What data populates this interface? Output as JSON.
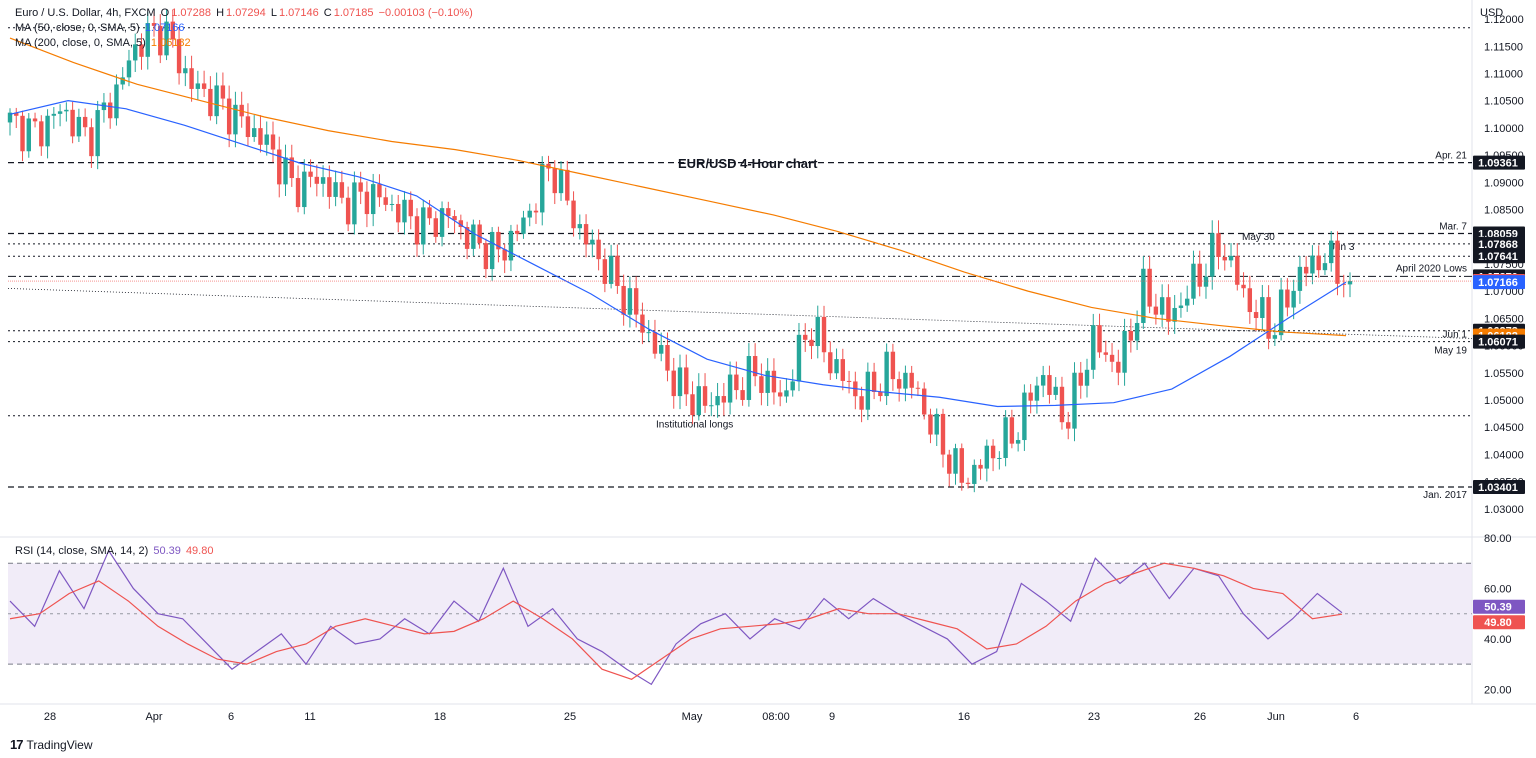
{
  "header": {
    "symbol": "Euro / U.S. Dollar, 4h, FXCM",
    "open_label": "O",
    "open": "1.07288",
    "high_label": "H",
    "high": "1.07294",
    "low_label": "L",
    "low": "1.07146",
    "close_label": "C",
    "close": "1.07185",
    "change": "−0.00103 (−0.10%)",
    "ma50_label": "MA (50, close, 0, SMA, 5)",
    "ma50_value": "1.07166",
    "ma200_label": "MA (200, close, 0, SMA, 5)",
    "ma200_value": "1.06182",
    "rsi_label": "RSI (14, close, SMA, 14, 2)",
    "rsi_value": "50.39",
    "rsi_ma_value": "49.80"
  },
  "branding": {
    "logo_text": "TradingView",
    "logo_mark": "17"
  },
  "colors": {
    "up": "#26a69a",
    "down": "#ef5350",
    "ma50": "#2962ff",
    "ma200": "#f57c00",
    "rsi": "#7e57c2",
    "rsi_ma": "#ef5350",
    "rsi_band": "#ede7f6",
    "dark_label": "#131722"
  },
  "chart_data": [
    {
      "type": "candlestick",
      "title": "EUR/USD 4-Hour chart",
      "currency_label": "USD",
      "ylim": [
        1.025,
        1.1235
      ],
      "y_ticks": [
        "1.12000",
        "1.11500",
        "1.11000",
        "1.10500",
        "1.10000",
        "1.09500",
        "1.09000",
        "1.08500",
        "1.08000",
        "1.07500",
        "1.07000",
        "1.06500",
        "1.06000",
        "1.05500",
        "1.05000",
        "1.04500",
        "1.04000",
        "1.03500",
        "1.03000"
      ],
      "x_ticks": [
        "28",
        "Apr",
        "6",
        "11",
        "18",
        "25",
        "May",
        "08:00",
        "9",
        "16",
        "23",
        "26",
        "Jun",
        "6"
      ],
      "price_labels": [
        {
          "text": "1.09361",
          "value": 1.09361,
          "style": "dark"
        },
        {
          "text": "1.08059",
          "value": 1.08059,
          "style": "dark"
        },
        {
          "text": "1.07868",
          "value": 1.07868,
          "style": "dark"
        },
        {
          "text": "1.07641",
          "value": 1.07641,
          "style": "dark"
        },
        {
          "text": "1.07270",
          "value": 1.0727,
          "style": "dark"
        },
        {
          "text": "1.07185",
          "value": 1.07185,
          "style": "red"
        },
        {
          "text": "1.07166",
          "value": 1.07166,
          "style": "blue"
        },
        {
          "text": "1.06273",
          "value": 1.06273,
          "style": "dark"
        },
        {
          "text": "1.06182",
          "value": 1.06182,
          "style": "orange"
        },
        {
          "text": "1.06071",
          "value": 1.06071,
          "style": "dark"
        },
        {
          "text": "1.03401",
          "value": 1.03401,
          "style": "dark"
        }
      ],
      "levels": [
        {
          "value": 1.1184,
          "style": "dotted",
          "label": ""
        },
        {
          "value": 1.09361,
          "style": "dashed",
          "label": "Apr. 21"
        },
        {
          "value": 1.08059,
          "style": "dashed",
          "label": "Mar. 7"
        },
        {
          "value": 1.07868,
          "style": "dotted",
          "label": "May 30"
        },
        {
          "value": 1.07641,
          "style": "dotted",
          "label": "Jun 3"
        },
        {
          "value": 1.0727,
          "style": "dashdot",
          "label": "April 2020 Lows"
        },
        {
          "value": 1.06273,
          "style": "dotted",
          "label": ""
        },
        {
          "value": 1.06071,
          "style": "dotted",
          "label": "Jun 1"
        },
        {
          "value": 1.0471,
          "style": "dotted",
          "label": "Institutional longs"
        },
        {
          "value": 1.03401,
          "style": "dashed",
          "label": "Jan. 2017"
        }
      ],
      "annotations": [
        "May 19"
      ],
      "trendline": {
        "from": 1.0705,
        "to": 1.0613
      },
      "series": [
        {
          "name": "MA (50, close, 0, SMA, 5)",
          "values": [
            1.1025,
            1.105,
            1.1035,
            1.1005,
            1.097,
            1.0935,
            1.091,
            1.0875,
            1.0805,
            1.075,
            1.0695,
            1.063,
            1.0575,
            1.0545,
            1.0528,
            1.0515,
            1.0505,
            1.0488,
            1.049,
            1.0495,
            1.052,
            1.058,
            1.065,
            1.07166
          ]
        },
        {
          "name": "MA (200, close, 0, SMA, 5)",
          "values": [
            1.1165,
            1.112,
            1.108,
            1.105,
            1.102,
            1.0995,
            1.0975,
            1.096,
            1.094,
            1.0915,
            1.089,
            1.0865,
            1.084,
            1.081,
            1.0775,
            1.0735,
            1.07,
            1.067,
            1.065,
            1.0637,
            1.0625,
            1.06182
          ]
        }
      ],
      "price_path": [
        1.101,
        1.099,
        1.1035,
        1.098,
        1.1055,
        1.116,
        1.118,
        1.108,
        1.105,
        1.101,
        1.097,
        1.089,
        1.091,
        1.086,
        1.088,
        1.085,
        1.082,
        1.084,
        1.079,
        1.077,
        1.083,
        1.0935,
        1.082,
        1.075,
        1.068,
        1.06,
        1.052,
        1.049,
        1.052,
        1.055,
        1.05,
        1.064,
        1.056,
        1.05,
        1.055,
        1.053,
        1.043,
        1.035,
        1.04,
        1.044,
        1.055,
        1.046,
        1.061,
        1.056,
        1.07,
        1.065,
        1.072,
        1.0787,
        1.068,
        1.063,
        1.073,
        1.0764,
        1.07185
      ]
    },
    {
      "type": "line",
      "title": "RSI",
      "ylim": [
        15,
        80
      ],
      "y_ticks": [
        "80.00",
        "60.00",
        "40.00",
        "20.00"
      ],
      "bands": [
        30,
        70
      ],
      "midline": 50,
      "series": [
        {
          "name": "RSI (14, close, SMA, 14, 2)",
          "values": [
            55,
            45,
            67,
            52,
            75,
            60,
            50,
            48,
            38,
            28,
            35,
            42,
            30,
            45,
            38,
            40,
            48,
            42,
            55,
            47,
            68,
            45,
            52,
            40,
            35,
            28,
            22,
            38,
            46,
            50,
            40,
            48,
            44,
            56,
            48,
            56,
            50,
            45,
            40,
            30,
            35,
            62,
            55,
            47,
            72,
            62,
            70,
            56,
            68,
            65,
            50,
            40,
            48,
            58,
            50.39
          ]
        },
        {
          "name": "RSI MA",
          "values": [
            48,
            50,
            58,
            63,
            55,
            45,
            38,
            32,
            30,
            35,
            38,
            45,
            48,
            45,
            42,
            43,
            48,
            55,
            48,
            40,
            28,
            24,
            32,
            40,
            44,
            45,
            46,
            48,
            52,
            50,
            50,
            47,
            44,
            36,
            38,
            45,
            55,
            62,
            66,
            70,
            68,
            65,
            60,
            58,
            48,
            49.8
          ]
        }
      ]
    }
  ]
}
